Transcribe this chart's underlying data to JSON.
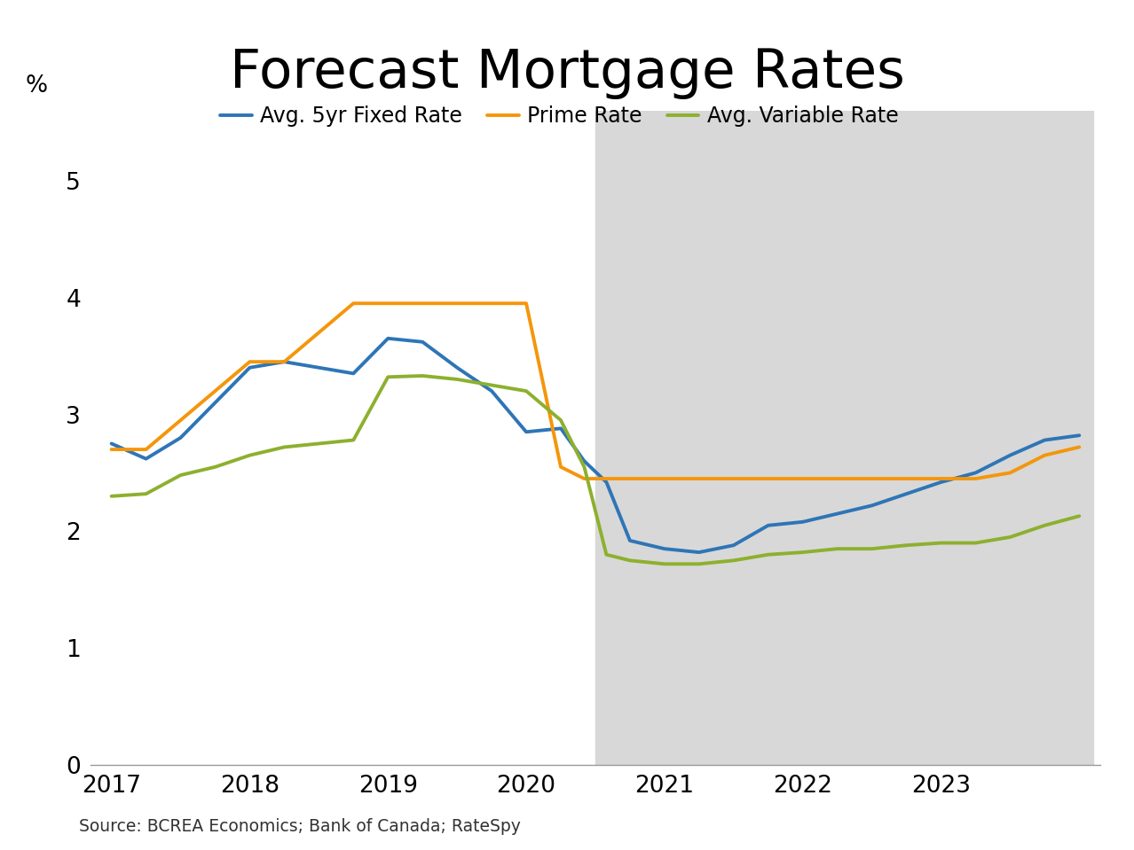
{
  "title": "Forecast Mortgage Rates",
  "source_text": "Source: BCREA Economics; Bank of Canada; RateSpy",
  "ylabel": "%",
  "ylim": [
    0,
    5.6
  ],
  "yticks": [
    0,
    1,
    2,
    3,
    4,
    5
  ],
  "forecast_start": 2020.5,
  "forecast_end": 2024.1,
  "background_color": "#ffffff",
  "forecast_bg_color": "#d8d8d8",
  "series": {
    "fixed": {
      "label": "Avg. 5yr Fixed Rate",
      "color": "#2e75b6",
      "linewidth": 2.8,
      "x": [
        2017.0,
        2017.25,
        2017.5,
        2017.75,
        2018.0,
        2018.25,
        2018.5,
        2018.75,
        2019.0,
        2019.25,
        2019.5,
        2019.75,
        2020.0,
        2020.25,
        2020.42,
        2020.58,
        2020.75,
        2021.0,
        2021.25,
        2021.5,
        2021.75,
        2022.0,
        2022.25,
        2022.5,
        2022.75,
        2023.0,
        2023.25,
        2023.5,
        2023.75,
        2024.0
      ],
      "y": [
        2.75,
        2.62,
        2.8,
        3.1,
        3.4,
        3.45,
        3.4,
        3.35,
        3.65,
        3.62,
        3.4,
        3.2,
        2.85,
        2.88,
        2.6,
        2.42,
        1.92,
        1.85,
        1.82,
        1.88,
        2.05,
        2.08,
        2.15,
        2.22,
        2.32,
        2.42,
        2.5,
        2.65,
        2.78,
        2.82
      ]
    },
    "prime": {
      "label": "Prime Rate",
      "color": "#f4960b",
      "linewidth": 2.8,
      "x": [
        2017.0,
        2017.25,
        2017.5,
        2017.75,
        2018.0,
        2018.25,
        2018.5,
        2018.75,
        2019.0,
        2019.25,
        2019.5,
        2019.75,
        2020.0,
        2020.25,
        2020.42,
        2020.58,
        2021.0,
        2021.25,
        2021.5,
        2021.75,
        2022.0,
        2022.25,
        2022.5,
        2022.75,
        2023.0,
        2023.25,
        2023.5,
        2023.75,
        2024.0
      ],
      "y": [
        2.7,
        2.7,
        2.95,
        3.2,
        3.45,
        3.45,
        3.7,
        3.95,
        3.95,
        3.95,
        3.95,
        3.95,
        3.95,
        2.55,
        2.45,
        2.45,
        2.45,
        2.45,
        2.45,
        2.45,
        2.45,
        2.45,
        2.45,
        2.45,
        2.45,
        2.45,
        2.5,
        2.65,
        2.72
      ]
    },
    "variable": {
      "label": "Avg. Variable Rate",
      "color": "#8db02e",
      "linewidth": 2.8,
      "x": [
        2017.0,
        2017.25,
        2017.5,
        2017.75,
        2018.0,
        2018.25,
        2018.5,
        2018.75,
        2019.0,
        2019.25,
        2019.5,
        2019.75,
        2020.0,
        2020.25,
        2020.42,
        2020.58,
        2020.75,
        2021.0,
        2021.25,
        2021.5,
        2021.75,
        2022.0,
        2022.25,
        2022.5,
        2022.75,
        2023.0,
        2023.25,
        2023.5,
        2023.75,
        2024.0
      ],
      "y": [
        2.3,
        2.32,
        2.48,
        2.55,
        2.65,
        2.72,
        2.75,
        2.78,
        3.32,
        3.33,
        3.3,
        3.25,
        3.2,
        2.95,
        2.55,
        1.8,
        1.75,
        1.72,
        1.72,
        1.75,
        1.8,
        1.82,
        1.85,
        1.85,
        1.88,
        1.9,
        1.9,
        1.95,
        2.05,
        2.13
      ]
    }
  },
  "xticks": [
    2017,
    2018,
    2019,
    2020,
    2021,
    2022,
    2023
  ],
  "xlim": [
    2016.85,
    2024.15
  ]
}
